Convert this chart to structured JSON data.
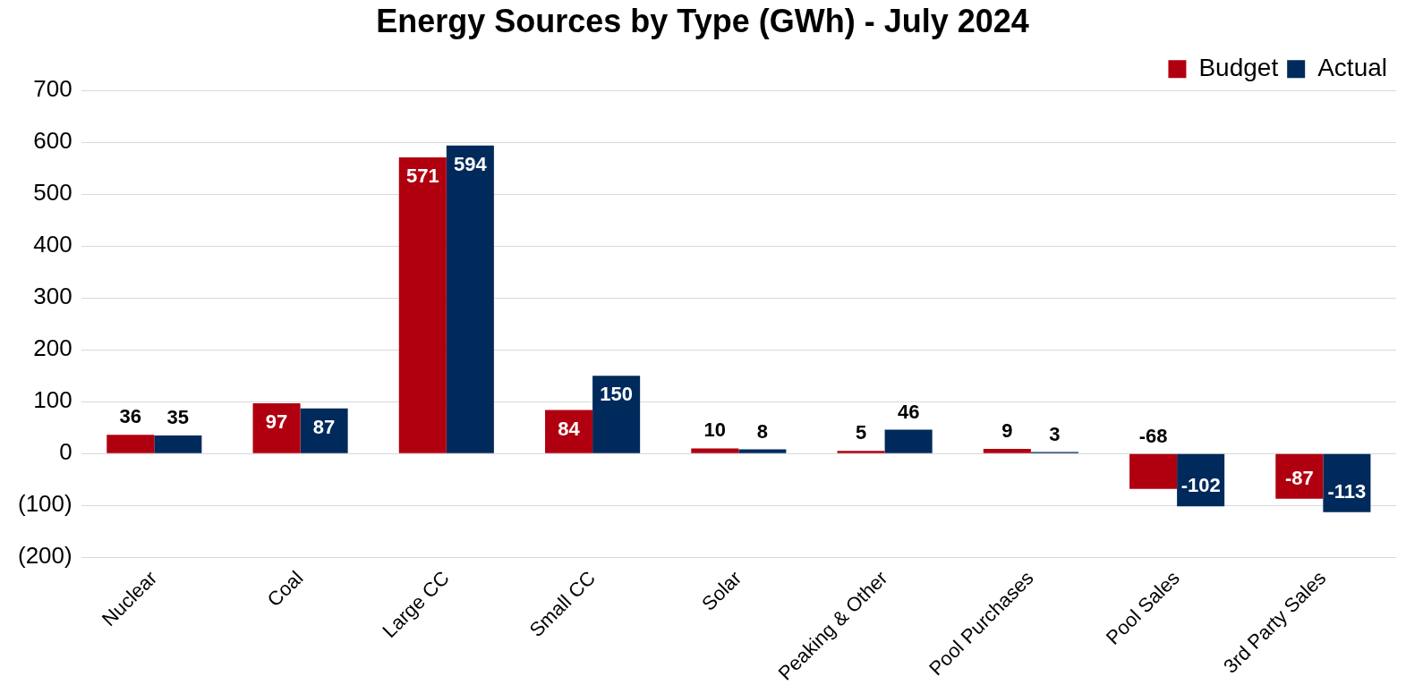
{
  "chart_data": {
    "type": "bar",
    "title": "Energy Sources by Type (GWh) - July 2024",
    "categories": [
      "Nuclear",
      "Coal",
      "Large CC",
      "Small CC",
      "Solar",
      "Peaking & Other",
      "Pool Purchases",
      "Pool Sales",
      "3rd Party Sales"
    ],
    "series": [
      {
        "name": "Budget",
        "color": "#b00010",
        "values": [
          36,
          97,
          571,
          84,
          10,
          5,
          9,
          -68,
          -87
        ]
      },
      {
        "name": "Actual",
        "color": "#002a5c",
        "values": [
          35,
          87,
          594,
          150,
          8,
          46,
          3,
          -102,
          -113
        ]
      }
    ],
    "ylim": [
      -200,
      700
    ],
    "yticks": [
      {
        "value": -200,
        "label": "(200)"
      },
      {
        "value": -100,
        "label": "(100)"
      },
      0,
      100,
      200,
      300,
      400,
      500,
      600,
      700
    ],
    "grid": "y",
    "legend": "top right",
    "data_labels": true
  }
}
